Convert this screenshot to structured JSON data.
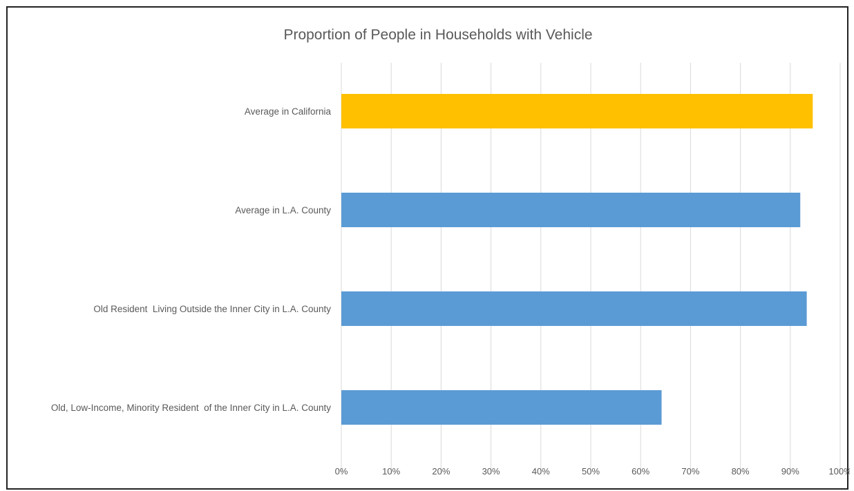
{
  "chart_data": {
    "type": "bar",
    "orientation": "horizontal",
    "title": "Proportion of People in Households with Vehicle",
    "categories": [
      "Average in California",
      "Average in L.A. County",
      "Old Resident  Living Outside the Inner City in L.A. County",
      "Old, Low-Income, Minority Resident  of the Inner City in L.A. County"
    ],
    "values": [
      0.945,
      0.92,
      0.933,
      0.642
    ],
    "colors": [
      "#ffc000",
      "#5b9bd5",
      "#5b9bd5",
      "#5b9bd5"
    ],
    "xlim": [
      0,
      1
    ],
    "x_ticks": [
      "0%",
      "10%",
      "20%",
      "30%",
      "40%",
      "50%",
      "60%",
      "70%",
      "80%",
      "90%",
      "100%"
    ],
    "grid": "vertical",
    "legend": "none",
    "xlabel": "",
    "ylabel": ""
  }
}
